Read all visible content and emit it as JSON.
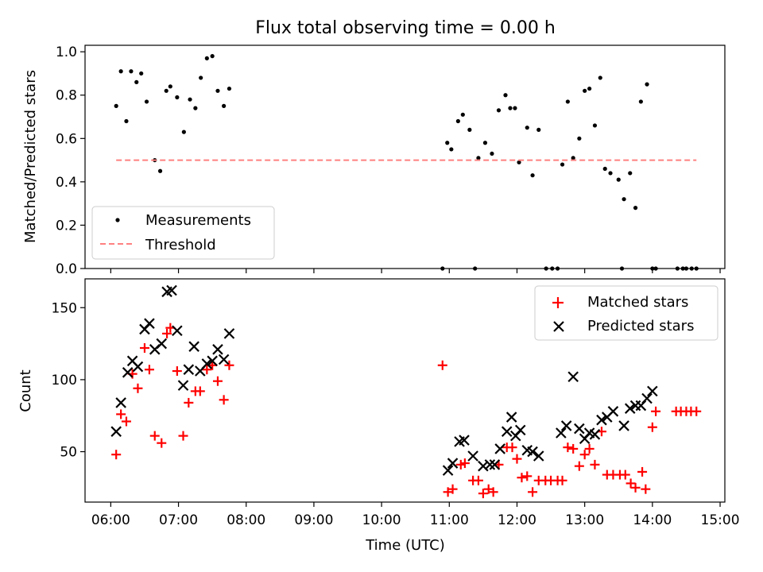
{
  "chart_data": {
    "title": "Flux total observing time = 0.00 h",
    "xlabel": "Time (UTC)",
    "xticks": [
      "06:00",
      "07:00",
      "08:00",
      "09:00",
      "10:00",
      "11:00",
      "12:00",
      "13:00",
      "14:00",
      "15:00"
    ],
    "xlim": [
      5.62,
      15.07
    ],
    "panels": [
      {
        "type": "scatter",
        "ylabel": "Matched/Predicted stars",
        "ylim": [
          0,
          1.03
        ],
        "yticks": [
          "0.0",
          "0.2",
          "0.4",
          "0.6",
          "0.8",
          "1.0"
        ],
        "legend": "lower-left",
        "series": [
          {
            "name": "Measurements",
            "marker": "dot",
            "color": "#000000",
            "x": [
              6.08,
              6.15,
              6.23,
              6.3,
              6.38,
              6.45,
              6.53,
              6.65,
              6.73,
              6.82,
              6.88,
              6.98,
              7.08,
              7.17,
              7.25,
              7.33,
              7.42,
              7.5,
              7.58,
              7.67,
              7.75,
              10.97,
              11.03,
              11.13,
              11.2,
              11.3,
              11.43,
              11.53,
              11.63,
              11.73,
              11.83,
              11.9,
              11.97,
              12.03,
              12.15,
              12.23,
              12.32,
              12.43,
              12.52,
              12.6,
              12.67,
              12.75,
              12.83,
              12.92,
              13.0,
              13.07,
              13.15,
              13.23,
              13.3,
              13.38,
              13.5,
              13.58,
              13.67,
              13.75,
              13.83,
              13.92,
              14.0,
              14.05,
              14.37,
              14.45,
              14.5,
              14.58,
              14.65
            ],
            "y": [
              0.75,
              0.91,
              0.68,
              0.91,
              0.86,
              0.9,
              0.77,
              0.5,
              0.45,
              0.82,
              0.84,
              0.79,
              0.63,
              0.78,
              0.74,
              0.88,
              0.97,
              0.98,
              0.82,
              0.75,
              0.83,
              0.58,
              0.55,
              0.68,
              0.71,
              0.64,
              0.51,
              0.58,
              0.53,
              0.73,
              0.8,
              0.74,
              0.74,
              0.49,
              0.65,
              0.43,
              0.64,
              0.0,
              0.0,
              0.0,
              0.48,
              0.77,
              0.51,
              0.6,
              0.82,
              0.83,
              0.66,
              0.88,
              0.46,
              0.44,
              0.41,
              0.32,
              0.44,
              0.28,
              0.77,
              0.85,
              0.0,
              0.0,
              0.0,
              0.0,
              0.0,
              0.0,
              0.0
            ],
            "y_extra_zero_x": [
              10.9,
              11.38,
              13.55
            ]
          },
          {
            "name": "Threshold",
            "marker": "dashed-line",
            "color": "#ff8080",
            "x": [
              6.08,
              14.65
            ],
            "y": [
              0.5,
              0.5
            ]
          }
        ]
      },
      {
        "type": "scatter",
        "ylabel": "Count",
        "ylim": [
          15,
          170
        ],
        "yticks": [
          "50",
          "100",
          "150"
        ],
        "ytick_values": [
          50,
          100,
          150
        ],
        "legend": "top-right",
        "series": [
          {
            "name": "Matched stars",
            "marker": "plus",
            "color": "#ff0000",
            "x": [
              6.08,
              6.15,
              6.23,
              6.32,
              6.4,
              6.5,
              6.57,
              6.65,
              6.75,
              6.83,
              6.88,
              6.98,
              7.07,
              7.15,
              7.25,
              7.32,
              7.42,
              7.5,
              7.58,
              7.67,
              7.75,
              10.9,
              10.98,
              11.05,
              11.17,
              11.23,
              11.35,
              11.43,
              11.5,
              11.58,
              11.65,
              11.73,
              11.85,
              11.93,
              12.0,
              12.07,
              12.15,
              12.23,
              12.32,
              12.42,
              12.5,
              12.6,
              12.67,
              12.75,
              12.83,
              12.92,
              13.0,
              13.07,
              13.15,
              13.25,
              13.33,
              13.42,
              13.52,
              13.6,
              13.68,
              13.75,
              13.85,
              13.9,
              14.0,
              14.05,
              14.35,
              14.42,
              14.5,
              14.57,
              14.65
            ],
            "y": [
              48,
              76,
              71,
              104,
              94,
              122,
              107,
              61,
              56,
              132,
              136,
              106,
              61,
              84,
              92,
              92,
              107,
              110,
              99,
              86,
              110,
              110,
              22,
              24,
              41,
              42,
              30,
              30,
              21,
              24,
              22,
              41,
              53,
              53,
              45,
              32,
              33,
              22,
              30,
              30,
              30,
              30,
              30,
              53,
              52,
              40,
              48,
              52,
              41,
              64,
              34,
              34,
              34,
              34,
              28,
              25,
              36,
              24,
              67,
              78,
              78,
              78,
              78,
              78,
              78
            ]
          },
          {
            "name": "Predicted stars",
            "marker": "x",
            "color": "#000000",
            "x": [
              6.08,
              6.15,
              6.25,
              6.32,
              6.4,
              6.5,
              6.57,
              6.65,
              6.75,
              6.83,
              6.9,
              6.98,
              7.07,
              7.15,
              7.23,
              7.32,
              7.42,
              7.5,
              7.58,
              7.67,
              7.75,
              10.98,
              11.05,
              11.15,
              11.22,
              11.35,
              11.5,
              11.6,
              11.67,
              11.75,
              11.85,
              11.92,
              11.98,
              12.05,
              12.15,
              12.23,
              12.32,
              12.65,
              12.73,
              12.83,
              12.92,
              13.0,
              13.07,
              13.15,
              13.25,
              13.33,
              13.42,
              13.58,
              13.67,
              13.75,
              13.83,
              13.92,
              14.0
            ],
            "y": [
              64,
              84,
              105,
              113,
              109,
              135,
              139,
              121,
              125,
              161,
              162,
              134,
              96,
              107,
              123,
              106,
              111,
              113,
              121,
              114,
              132,
              37,
              42,
              57,
              58,
              47,
              40,
              41,
              41,
              52,
              64,
              74,
              61,
              65,
              51,
              50,
              47,
              63,
              68,
              102,
              66,
              59,
              63,
              62,
              72,
              74,
              78,
              68,
              80,
              82,
              82,
              87,
              92
            ]
          }
        ]
      }
    ]
  }
}
